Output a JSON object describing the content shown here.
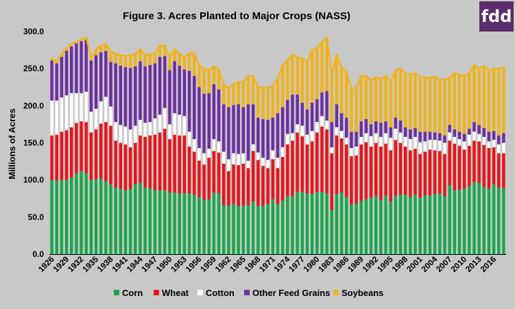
{
  "logo": {
    "text": "fdd",
    "bg": "#5a2d6b"
  },
  "chart_data": {
    "type": "bar",
    "stacked": true,
    "title": "Figure 3. Acres Planted to Major Crops (NASS)",
    "ylabel": "Millions of Acres",
    "xlabel": "",
    "ylim": [
      0,
      300
    ],
    "yticks": [
      "0.0",
      "50.0",
      "100.0",
      "150.0",
      "200.0",
      "250.0",
      "300.0"
    ],
    "grid": false,
    "legend_position": "bottom",
    "categories": [
      1926,
      1927,
      1928,
      1929,
      1930,
      1931,
      1932,
      1933,
      1934,
      1935,
      1936,
      1937,
      1938,
      1939,
      1940,
      1941,
      1942,
      1943,
      1944,
      1945,
      1946,
      1947,
      1948,
      1949,
      1950,
      1951,
      1952,
      1953,
      1954,
      1955,
      1956,
      1957,
      1958,
      1959,
      1960,
      1961,
      1962,
      1963,
      1964,
      1965,
      1966,
      1967,
      1968,
      1969,
      1970,
      1971,
      1972,
      1973,
      1974,
      1975,
      1976,
      1977,
      1978,
      1979,
      1980,
      1981,
      1982,
      1983,
      1984,
      1985,
      1986,
      1987,
      1988,
      1989,
      1990,
      1991,
      1992,
      1993,
      1994,
      1995,
      1996,
      1997,
      1998,
      1999,
      2000,
      2001,
      2002,
      2003,
      2004,
      2005,
      2006,
      2007,
      2008,
      2009,
      2010,
      2011,
      2012,
      2013,
      2014,
      2015,
      2016,
      2017,
      2018
    ],
    "xtick_labels": [
      "1926",
      "1929",
      "1932",
      "1935",
      "1938",
      "1941",
      "1944",
      "1947",
      "1950",
      "1953",
      "1956",
      "1959",
      "1962",
      "1965",
      "1968",
      "1971",
      "1974",
      "1977",
      "1980",
      "1983",
      "1986",
      "1989",
      "1992",
      "1995",
      "1998",
      "2001",
      "2004",
      "2007",
      "2010",
      "2013",
      "2016"
    ],
    "series": [
      {
        "name": "Corn",
        "color": "#1aa64b",
        "values": [
          100,
          99,
          100,
          100,
          103,
          109,
          112,
          109,
          100,
          101,
          102,
          98,
          94,
          90,
          88,
          86,
          88,
          94,
          96,
          90,
          89,
          86,
          86,
          86,
          83,
          83,
          82,
          82,
          82,
          80,
          77,
          73,
          74,
          83,
          82,
          66,
          65,
          68,
          65,
          65,
          66,
          71,
          65,
          65,
          67,
          74,
          67,
          72,
          78,
          78,
          84,
          84,
          82,
          81,
          84,
          84,
          82,
          60,
          81,
          83,
          77,
          67,
          68,
          72,
          74,
          76,
          79,
          73,
          79,
          71,
          79,
          80,
          80,
          77,
          80,
          76,
          79,
          79,
          81,
          82,
          78,
          93,
          86,
          87,
          88,
          92,
          97,
          96,
          91,
          88,
          94,
          90,
          89
        ]
      },
      {
        "name": "Wheat",
        "color": "#e8141b",
        "values": [
          60,
          62,
          65,
          67,
          68,
          68,
          67,
          69,
          64,
          67,
          74,
          80,
          79,
          63,
          62,
          62,
          56,
          56,
          64,
          68,
          71,
          75,
          78,
          83,
          72,
          78,
          78,
          78,
          63,
          58,
          49,
          48,
          56,
          56,
          55,
          56,
          47,
          53,
          55,
          57,
          50,
          68,
          62,
          54,
          49,
          54,
          49,
          59,
          70,
          75,
          80,
          75,
          66,
          71,
          80,
          88,
          86,
          76,
          79,
          73,
          71,
          65,
          65,
          76,
          77,
          69,
          71,
          72,
          70,
          69,
          75,
          70,
          65,
          63,
          62,
          59,
          59,
          62,
          59,
          57,
          57,
          60,
          63,
          59,
          53,
          54,
          56,
          56,
          56,
          55,
          50,
          46,
          47
        ]
      },
      {
        "name": "Cotton",
        "color": "#ffffff",
        "values": [
          47,
          46,
          46,
          47,
          46,
          40,
          38,
          41,
          28,
          28,
          30,
          34,
          26,
          25,
          24,
          24,
          24,
          23,
          21,
          19,
          18,
          22,
          24,
          28,
          20,
          29,
          28,
          26,
          20,
          17,
          17,
          15,
          12,
          16,
          15,
          16,
          16,
          15,
          15,
          14,
          10,
          9,
          10,
          11,
          11,
          12,
          14,
          13,
          14,
          10,
          11,
          14,
          13,
          14,
          14,
          14,
          12,
          8,
          11,
          10,
          9,
          11,
          12,
          10,
          12,
          14,
          13,
          13,
          14,
          17,
          15,
          14,
          13,
          15,
          16,
          16,
          14,
          13,
          14,
          14,
          15,
          11,
          9,
          9,
          11,
          15,
          12,
          10,
          11,
          9,
          10,
          12,
          14
        ]
      },
      {
        "name": "Other Feed Grains",
        "color": "#6b2fa0",
        "values": [
          54,
          50,
          55,
          60,
          63,
          67,
          70,
          70,
          69,
          72,
          66,
          62,
          60,
          79,
          80,
          80,
          83,
          80,
          79,
          76,
          77,
          74,
          78,
          70,
          73,
          70,
          66,
          63,
          82,
          85,
          82,
          80,
          75,
          74,
          70,
          64,
          70,
          65,
          67,
          62,
          76,
          54,
          47,
          52,
          54,
          44,
          60,
          54,
          46,
          52,
          40,
          31,
          34,
          38,
          31,
          32,
          40,
          34,
          31,
          24,
          27,
          22,
          20,
          21,
          19,
          16,
          16,
          19,
          16,
          14,
          15,
          16,
          13,
          13,
          12,
          14,
          13,
          11,
          10,
          10,
          10,
          10,
          10,
          10,
          10,
          8,
          13,
          12,
          12,
          13,
          12,
          12,
          13
        ]
      },
      {
        "name": "Soybeans",
        "color": "#f0b31a",
        "values": [
          3,
          3,
          3,
          4,
          3,
          2,
          2,
          3,
          3,
          8,
          9,
          9,
          14,
          13,
          14,
          15,
          17,
          17,
          16,
          15,
          14,
          14,
          15,
          14,
          18,
          16,
          16,
          16,
          24,
          30,
          30,
          33,
          31,
          24,
          26,
          27,
          26,
          28,
          30,
          34,
          38,
          38,
          41,
          42,
          43,
          43,
          46,
          57,
          53,
          54,
          50,
          60,
          64,
          71,
          69,
          68,
          72,
          64,
          67,
          62,
          62,
          58,
          59,
          61,
          58,
          59,
          60,
          59,
          61,
          62,
          64,
          70,
          72,
          74,
          74,
          74,
          73,
          73,
          75,
          72,
          75,
          64,
          76,
          77,
          78,
          75,
          77,
          76,
          84,
          82,
          84,
          90,
          89
        ]
      }
    ]
  }
}
